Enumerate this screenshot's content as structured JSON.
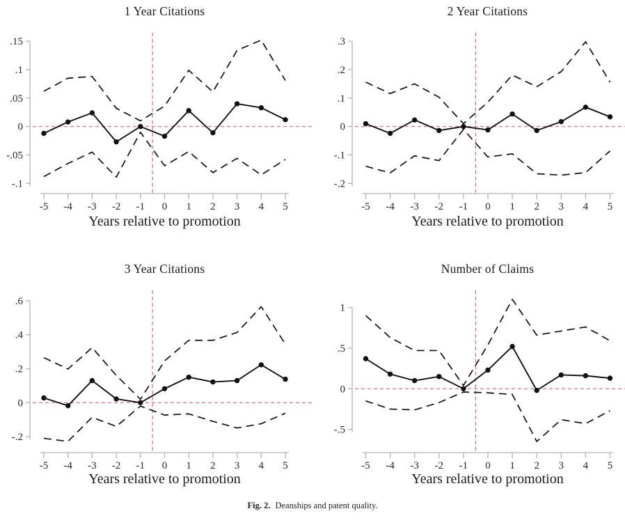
{
  "figure": {
    "caption_label": "Fig. 2.",
    "caption_text": "Deanships and patent quality."
  },
  "colors": {
    "series_line": "#111111",
    "ci_line": "#111111",
    "refline": "#d66a76",
    "axis": "#b3b3b3",
    "text": "#262626"
  },
  "chart_data": [
    {
      "type": "line",
      "title": "1 Year Citations",
      "xlabel": "Years relative to promotion",
      "x": [
        -5,
        -4,
        -3,
        -2,
        -1,
        0,
        1,
        2,
        3,
        4,
        5
      ],
      "xtick_labels": [
        "-5",
        "-4",
        "-3",
        "-2",
        "-1",
        "0",
        "1",
        "2",
        "3",
        "4",
        "5"
      ],
      "yticks": [
        0.15,
        0.1,
        0.05,
        0,
        -0.05,
        -0.1
      ],
      "ytick_labels": [
        ".15",
        ".1",
        ".05",
        "0",
        "-.05",
        "-.1"
      ],
      "ylim": [
        -0.1,
        0.15
      ],
      "grid": false,
      "refline_h": 0,
      "refline_v": -0.5,
      "series": [
        {
          "name": "point estimate",
          "style": "solid-marker",
          "values": [
            -0.012,
            0.008,
            0.024,
            -0.027,
            0.0,
            -0.017,
            0.028,
            -0.011,
            0.04,
            0.033,
            0.012
          ]
        },
        {
          "name": "upper 95% CI",
          "style": "long-dash",
          "values": [
            0.062,
            0.085,
            0.088,
            0.032,
            0.01,
            0.036,
            0.099,
            0.061,
            0.134,
            0.152,
            0.081
          ]
        },
        {
          "name": "lower 95% CI",
          "style": "long-dash",
          "values": [
            -0.088,
            -0.065,
            -0.045,
            -0.089,
            -0.01,
            -0.069,
            -0.044,
            -0.081,
            -0.056,
            -0.085,
            -0.058
          ]
        }
      ]
    },
    {
      "type": "line",
      "title": "2 Year Citations",
      "xlabel": "Years relative to promotion",
      "x": [
        -5,
        -4,
        -3,
        -2,
        -1,
        0,
        1,
        2,
        3,
        4,
        5
      ],
      "xtick_labels": [
        "-5",
        "-4",
        "-3",
        "-2",
        "-1",
        "0",
        "1",
        "2",
        "3",
        "4",
        "5"
      ],
      "yticks": [
        0.3,
        0.2,
        0.1,
        0,
        -0.1,
        -0.2
      ],
      "ytick_labels": [
        ".3",
        ".2",
        ".1",
        "0",
        "-.1",
        "-.2"
      ],
      "ylim": [
        -0.2,
        0.3
      ],
      "grid": false,
      "refline_h": 0,
      "refline_v": -0.5,
      "series": [
        {
          "name": "point estimate",
          "style": "solid-marker",
          "values": [
            0.01,
            -0.024,
            0.023,
            -0.014,
            0.0,
            -0.012,
            0.044,
            -0.014,
            0.017,
            0.068,
            0.034
          ]
        },
        {
          "name": "upper 95% CI",
          "style": "long-dash",
          "values": [
            0.156,
            0.116,
            0.15,
            0.103,
            0.01,
            0.086,
            0.181,
            0.14,
            0.193,
            0.298,
            0.156
          ]
        },
        {
          "name": "lower 95% CI",
          "style": "long-dash",
          "values": [
            -0.14,
            -0.163,
            -0.103,
            -0.12,
            -0.01,
            -0.107,
            -0.096,
            -0.166,
            -0.171,
            -0.162,
            -0.086
          ]
        }
      ]
    },
    {
      "type": "line",
      "title": "3 Year Citations",
      "xlabel": "Years relative to promotion",
      "x": [
        -5,
        -4,
        -3,
        -2,
        -1,
        0,
        1,
        2,
        3,
        4,
        5
      ],
      "xtick_labels": [
        "-5",
        "-4",
        "-3",
        "-2",
        "-1",
        "0",
        "1",
        "2",
        "3",
        "4",
        "5"
      ],
      "yticks": [
        0.6,
        0.4,
        0.2,
        0,
        -0.2
      ],
      "ytick_labels": [
        ".6",
        ".4",
        ".2",
        "0",
        "-.2"
      ],
      "ylim": [
        -0.2,
        0.6
      ],
      "grid": false,
      "refline_h": 0,
      "refline_v": -0.5,
      "series": [
        {
          "name": "point estimate",
          "style": "solid-marker",
          "values": [
            0.028,
            -0.018,
            0.13,
            0.022,
            0.0,
            0.082,
            0.15,
            0.122,
            0.13,
            0.223,
            0.138
          ]
        },
        {
          "name": "upper 95% CI",
          "style": "long-dash",
          "values": [
            0.265,
            0.198,
            0.324,
            0.16,
            0.02,
            0.246,
            0.367,
            0.367,
            0.413,
            0.565,
            0.345
          ]
        },
        {
          "name": "lower 95% CI",
          "style": "long-dash",
          "values": [
            -0.21,
            -0.228,
            -0.086,
            -0.14,
            -0.02,
            -0.073,
            -0.066,
            -0.11,
            -0.149,
            -0.124,
            -0.062
          ]
        }
      ]
    },
    {
      "type": "line",
      "title": "Number of Claims",
      "xlabel": "Years relative to promotion",
      "x": [
        -5,
        -4,
        -3,
        -2,
        -1,
        0,
        1,
        2,
        3,
        4,
        5
      ],
      "xtick_labels": [
        "-5",
        "-4",
        "-3",
        "-2",
        "-1",
        "0",
        "1",
        "2",
        "3",
        "4",
        "5"
      ],
      "yticks": [
        1,
        0.5,
        0,
        -0.5
      ],
      "ytick_labels": [
        "1",
        ".5",
        "0",
        "-.5"
      ],
      "ylim": [
        -0.5,
        1
      ],
      "grid": false,
      "refline_h": 0,
      "refline_v": -0.5,
      "series": [
        {
          "name": "point estimate",
          "style": "solid-marker",
          "values": [
            0.37,
            0.18,
            0.1,
            0.15,
            0.0,
            0.23,
            0.52,
            -0.02,
            0.17,
            0.16,
            0.13
          ]
        },
        {
          "name": "upper 95% CI",
          "style": "long-dash",
          "values": [
            0.9,
            0.63,
            0.47,
            0.47,
            0.04,
            0.54,
            1.1,
            0.66,
            0.71,
            0.76,
            0.59
          ]
        },
        {
          "name": "lower 95% CI",
          "style": "long-dash",
          "values": [
            -0.15,
            -0.25,
            -0.26,
            -0.17,
            -0.04,
            -0.05,
            -0.07,
            -0.65,
            -0.38,
            -0.43,
            -0.27
          ]
        }
      ]
    }
  ]
}
